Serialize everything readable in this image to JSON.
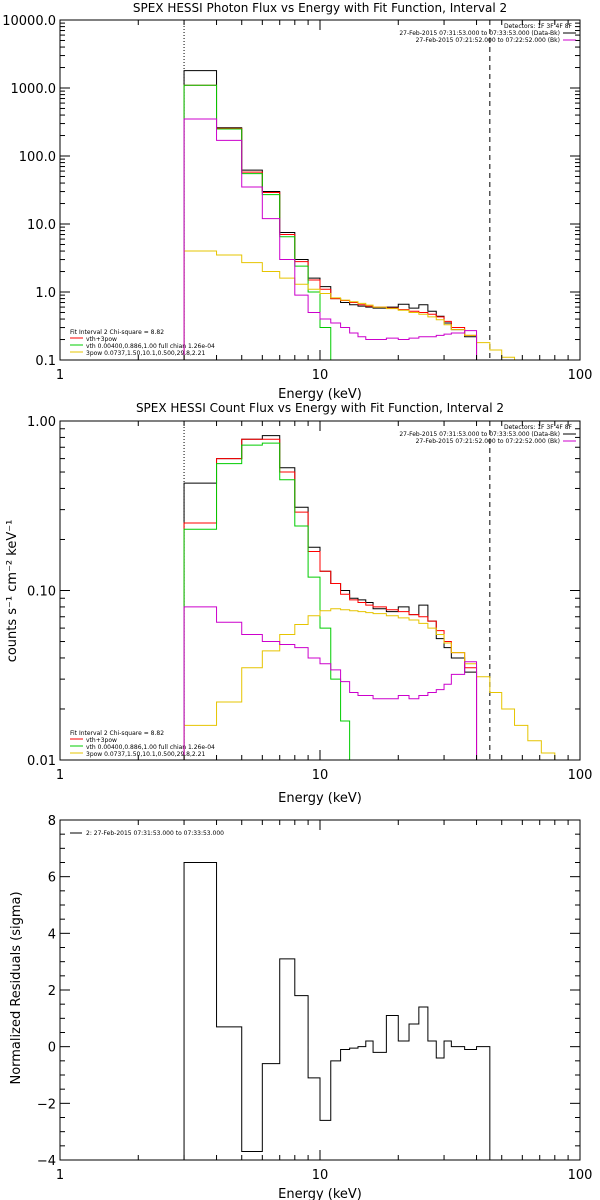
{
  "chart_data": [
    {
      "type": "line",
      "step": true,
      "title": "SPEX HESSI Photon Flux vs Energy with Fit Function, Interval 2",
      "xlabel": "Energy (keV)",
      "ylabel": "",
      "xscale": "log",
      "yscale": "log",
      "xlim": [
        1,
        100
      ],
      "ylim": [
        0.1,
        10000
      ],
      "xticks": [
        1,
        10,
        100
      ],
      "xtick_labels": [
        "1",
        "10",
        "100"
      ],
      "yticks": [
        0.1,
        1,
        10,
        100,
        1000,
        10000
      ],
      "ytick_labels": [
        "0.1",
        "1.0",
        "10.0",
        "100.0",
        "1000.0",
        "10000.0"
      ],
      "edges": [
        3,
        4,
        5,
        6,
        7,
        8,
        9,
        10,
        11,
        12,
        13,
        14,
        15,
        16,
        18,
        20,
        22,
        24,
        26,
        28,
        30,
        32,
        36,
        40,
        45,
        50,
        56,
        63
      ],
      "vlines": [
        {
          "x": 3,
          "style": "dotted"
        },
        {
          "x": 45,
          "style": "dashed"
        }
      ],
      "annotations_right": [
        "Detectors: 1F 3F 4F 8F",
        "27-Feb-2015 07:31:53.000 to 07:33:53.000 (Data-Bk)",
        "27-Feb-2015 07:21:52.000 to 07:22:52.000 (Bk)"
      ],
      "annotations_left": [
        "Fit Interval 2   Chi-square = 8.82",
        "vth+3pow",
        "vth 0.00400,0.886,1.00  full chian 1.26e-04",
        "3pow 0.0737,1.50,10.1,0.500,29.8,2.21"
      ],
      "series": [
        {
          "name": "",
          "color": "#000000",
          "values": [
            1800,
            260,
            62,
            30,
            7.5,
            3.0,
            1.6,
            1.2,
            0.8,
            0.7,
            0.65,
            0.62,
            0.6,
            0.58,
            0.6,
            0.66,
            0.58,
            0.65,
            0.52,
            0.44,
            0.35,
            0.28,
            0.22,
            null,
            null,
            null,
            null
          ]
        },
        {
          "name": "vth+3pow",
          "color": "#ff0000",
          "values": [
            1100,
            255,
            58,
            29,
            7.0,
            2.8,
            1.5,
            1.1,
            0.8,
            0.75,
            0.7,
            0.65,
            0.62,
            0.6,
            0.58,
            0.55,
            0.52,
            0.5,
            0.47,
            0.43,
            0.37,
            0.3,
            0.23,
            null,
            null,
            null,
            null
          ]
        },
        {
          "name": "vth 0.00400,0.886,1.00  full chian 1.26e-04",
          "color": "#00cc00",
          "values": [
            1100,
            250,
            55,
            27,
            6.5,
            2.4,
            1.0,
            0.3,
            0.1,
            null,
            null,
            null,
            null,
            null,
            null,
            null,
            null,
            null,
            null,
            null,
            null,
            null,
            null,
            null,
            null,
            null,
            null
          ]
        },
        {
          "name": "3pow 0.0737,1.50,10.1,0.500,29.8,2.21",
          "color": "#e6c400",
          "values": [
            4.0,
            3.5,
            2.7,
            2.0,
            1.6,
            1.3,
            1.1,
            0.95,
            0.82,
            0.76,
            0.72,
            0.68,
            0.64,
            0.6,
            0.57,
            0.54,
            0.5,
            0.47,
            0.43,
            0.39,
            0.33,
            0.28,
            0.23,
            0.18,
            0.14,
            0.11,
            0.1
          ]
        },
        {
          "name": "",
          "color": "#cc00cc",
          "values": [
            350,
            170,
            35,
            12,
            3.0,
            0.9,
            0.5,
            0.4,
            0.35,
            0.3,
            0.25,
            0.22,
            0.2,
            0.2,
            0.21,
            0.2,
            0.21,
            0.22,
            0.22,
            0.23,
            0.24,
            0.25,
            0.27,
            null,
            null,
            null,
            null
          ]
        }
      ]
    },
    {
      "type": "line",
      "step": true,
      "title": "SPEX HESSI Count Flux vs Energy with Fit Function, Interval 2",
      "xlabel": "Energy (keV)",
      "ylabel": "counts s⁻¹ cm⁻² keV⁻¹",
      "xscale": "log",
      "yscale": "log",
      "xlim": [
        1,
        100
      ],
      "ylim": [
        0.01,
        1.0
      ],
      "xticks": [
        1,
        10,
        100
      ],
      "xtick_labels": [
        "1",
        "10",
        "100"
      ],
      "yticks": [
        0.01,
        0.1,
        1.0
      ],
      "ytick_labels": [
        "0.01",
        "0.10",
        "1.00"
      ],
      "edges": [
        3,
        4,
        5,
        6,
        7,
        8,
        9,
        10,
        11,
        12,
        13,
        14,
        15,
        16,
        18,
        20,
        22,
        24,
        26,
        28,
        30,
        32,
        36,
        40,
        45,
        50,
        56,
        63,
        71,
        80
      ],
      "vlines": [
        {
          "x": 3,
          "style": "dotted"
        },
        {
          "x": 45,
          "style": "dashed"
        }
      ],
      "annotations_right": [
        "Detectors: 1F 3F 4F 8F",
        "27-Feb-2015 07:31:53.000 to 07:33:53.000 (Data-Bk)",
        "27-Feb-2015 07:21:52.000 to 07:22:52.000 (Bk)"
      ],
      "annotations_left": [
        "Fit Interval 2   Chi-square = 8.82",
        "vth+3pow",
        "vth 0.00400,0.886,1.00  full chian 1.26e-04",
        "3pow 0.0737,1.50,10.1,0.500,29.8,2.21"
      ],
      "series": [
        {
          "name": "",
          "color": "#000000",
          "values": [
            0.43,
            0.6,
            0.78,
            0.82,
            0.53,
            0.31,
            0.18,
            0.13,
            0.11,
            0.1,
            0.09,
            0.088,
            0.085,
            0.078,
            0.075,
            0.08,
            0.072,
            0.082,
            0.066,
            0.052,
            0.046,
            0.04,
            0.033,
            null,
            null,
            null,
            null,
            null,
            null
          ]
        },
        {
          "name": "vth+3pow",
          "color": "#ff0000",
          "values": [
            0.25,
            0.6,
            0.78,
            0.78,
            0.5,
            0.29,
            0.17,
            0.13,
            0.11,
            0.095,
            0.088,
            0.085,
            0.082,
            0.08,
            0.077,
            0.075,
            0.072,
            0.07,
            0.066,
            0.058,
            0.05,
            0.043,
            0.035,
            null,
            null,
            null,
            null,
            null,
            null
          ]
        },
        {
          "name": "vth 0.00400,0.886,1.00  full chian 1.26e-04",
          "color": "#00cc00",
          "values": [
            0.23,
            0.56,
            0.72,
            0.74,
            0.45,
            0.24,
            0.12,
            0.06,
            0.03,
            0.017,
            0.01,
            null,
            null,
            null,
            null,
            null,
            null,
            null,
            null,
            null,
            null,
            null,
            null,
            null,
            null,
            null,
            null,
            null,
            null
          ]
        },
        {
          "name": "3pow 0.0737,1.50,10.1,0.500,29.8,2.21",
          "color": "#e6c400",
          "values": [
            0.016,
            0.022,
            0.035,
            0.044,
            0.055,
            0.063,
            0.071,
            0.076,
            0.078,
            0.077,
            0.076,
            0.075,
            0.074,
            0.073,
            0.071,
            0.069,
            0.067,
            0.064,
            0.06,
            0.055,
            0.049,
            0.043,
            0.037,
            0.031,
            0.025,
            0.02,
            0.016,
            0.013,
            0.011
          ]
        },
        {
          "name": "",
          "color": "#cc00cc",
          "values": [
            0.08,
            0.065,
            0.055,
            0.05,
            0.048,
            0.046,
            0.04,
            0.037,
            0.034,
            0.029,
            0.025,
            0.024,
            0.024,
            0.023,
            0.023,
            0.024,
            0.023,
            0.024,
            0.025,
            0.026,
            0.028,
            0.032,
            0.038,
            null,
            null,
            null,
            null,
            null,
            null
          ]
        }
      ]
    },
    {
      "type": "line",
      "step": true,
      "title": "",
      "xlabel": "Energy (keV)",
      "ylabel": "Normalized Residuals (sigma)",
      "xscale": "log",
      "yscale": "linear",
      "xlim": [
        1,
        100
      ],
      "ylim": [
        -4,
        8
      ],
      "xticks": [
        1,
        10,
        100
      ],
      "xtick_labels": [
        "1",
        "10",
        "100"
      ],
      "yticks": [
        -4,
        -2,
        0,
        2,
        4,
        6,
        8
      ],
      "ytick_labels": [
        "−4",
        "−2",
        "0",
        "2",
        "4",
        "6",
        "8"
      ],
      "edges": [
        3,
        4,
        5,
        6,
        7,
        8,
        9,
        10,
        11,
        12,
        13,
        14,
        15,
        16,
        18,
        20,
        22,
        24,
        26,
        28,
        30,
        32,
        36,
        40,
        45
      ],
      "legend": [
        {
          "label": "2: 27-Feb-2015 07:31:53.000 to 07:33:53.000",
          "color": "#000000"
        }
      ],
      "series": [
        {
          "name": "2: 27-Feb-2015 07:31:53.000 to 07:33:53.000",
          "color": "#000000",
          "values": [
            6.5,
            0.7,
            -3.7,
            -0.6,
            3.1,
            1.8,
            -1.1,
            -2.6,
            -0.5,
            -0.1,
            -0.05,
            0.0,
            0.2,
            -0.2,
            1.1,
            0.2,
            0.8,
            1.4,
            0.2,
            -0.4,
            0.2,
            0.0,
            -0.1,
            0.0
          ]
        }
      ]
    }
  ]
}
